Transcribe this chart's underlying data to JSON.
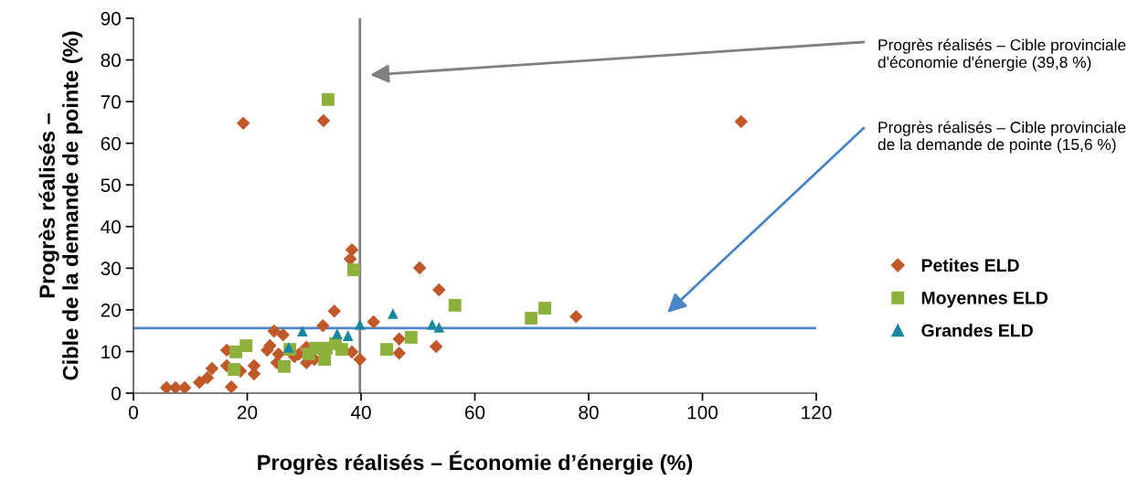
{
  "chart_data": {
    "type": "scatter",
    "xlabel": "Progrès réalisés – Économie d’énergie (%)",
    "ylabel": "Progrès réalisés –\nCible de la demande de pointe (%)",
    "xlim": [
      0,
      120
    ],
    "xticks": [
      0,
      20,
      40,
      60,
      80,
      100,
      120
    ],
    "ylim": [
      0,
      90
    ],
    "yticks": [
      0,
      10,
      20,
      30,
      40,
      50,
      60,
      70,
      80,
      90
    ],
    "grid": false,
    "legend": "right",
    "ref_lines": [
      {
        "axis": "x",
        "value": 39.8,
        "color": "#808080"
      },
      {
        "axis": "y",
        "value": 15.6,
        "color": "#4a86c5"
      }
    ],
    "annotations": [
      "Progrès réalisés – Cible provinciale\nd'économie d'énergie (39,8 %)",
      "Progrès réalisés – Cible provinciale\nde la demande de pointe (15,6 %)"
    ],
    "series": [
      {
        "name": "Petites ELD",
        "color": "#c0582a",
        "marker": "diamond",
        "x": [
          5.8,
          7.4,
          9.0,
          11.6,
          13.0,
          13.8,
          16.4,
          16.4,
          17.2,
          18.8,
          21.2,
          21.2,
          19.3,
          23.5,
          24.0,
          25.2,
          25.5,
          24.7,
          26.3,
          28.3,
          29.1,
          30.4,
          30.4,
          31.8,
          33.3,
          35.3,
          38.4,
          38.1,
          38.4,
          39.8,
          42.2,
          33.4,
          50.3,
          53.7,
          46.7,
          46.7,
          53.2,
          77.8,
          106.8
        ],
        "values": [
          1.3,
          1.3,
          1.3,
          2.6,
          3.7,
          5.9,
          10.3,
          6.6,
          1.5,
          5.3,
          6.6,
          4.6,
          64.8,
          10.3,
          11.4,
          7.3,
          9.4,
          14.9,
          14.0,
          8.8,
          9.4,
          11.0,
          7.3,
          8.1,
          16.2,
          19.7,
          34.4,
          32.2,
          9.9,
          8.1,
          17.1,
          65.4,
          30.1,
          24.8,
          13.0,
          9.6,
          11.2,
          18.4,
          65.2
        ]
      },
      {
        "name": "Moyennes ELD",
        "color": "#8db13b",
        "marker": "square",
        "x": [
          18.0,
          19.8,
          17.7,
          26.5,
          27.5,
          30.8,
          32.0,
          33.9,
          33.6,
          35.5,
          36.6,
          38.7,
          34.2,
          44.5,
          48.8,
          56.5,
          69.9,
          72.3
        ],
        "values": [
          9.9,
          11.4,
          5.7,
          6.4,
          10.5,
          9.4,
          10.8,
          10.8,
          8.1,
          11.9,
          10.5,
          29.6,
          70.5,
          10.5,
          13.4,
          21.1,
          18.0,
          20.4
        ]
      },
      {
        "name": "Grandes ELD",
        "color": "#1a87a0",
        "marker": "triangle",
        "x": [
          27.3,
          29.7,
          35.8,
          37.7,
          39.8,
          45.6,
          52.5,
          53.7
        ],
        "values": [
          11.0,
          14.9,
          14.3,
          13.8,
          16.5,
          19.1,
          16.5,
          15.8
        ]
      }
    ]
  }
}
